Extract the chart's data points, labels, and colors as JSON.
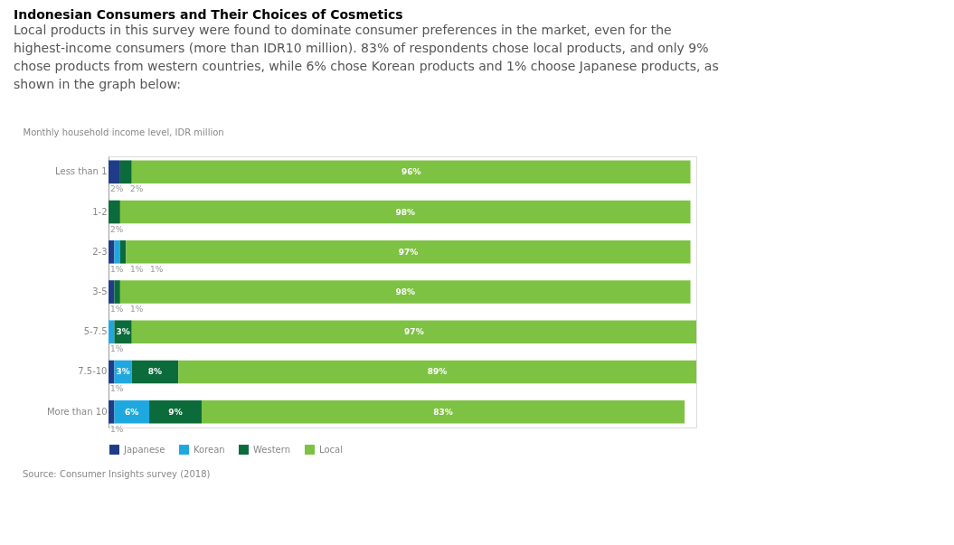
{
  "chart_data": {
    "type": "bar",
    "orientation": "horizontal",
    "stacked": true,
    "title": "Indonesian Consumers and Their Choices of Cosmetics",
    "subtitle": "Local products in this survey were found to dominate consumer preferences in the market, even for the highest-income consumers (more than IDR10 million). 83% of respondents chose local products, and only 9% chose products from western countries, while 6% chose Korean products and 1% choose Japanese products, as shown in the graph below:",
    "ylabel": "Monthly household income level, IDR million",
    "categories": [
      "Less than 1",
      "1-2",
      "2-3",
      "3-5",
      "5-7.5",
      "7.5-10",
      "More than 10"
    ],
    "series": [
      {
        "name": "Japanese",
        "color": "#1f3c88",
        "values": [
          2,
          null,
          1,
          1,
          null,
          1,
          1
        ],
        "value_labels": [
          "2%",
          null,
          "1%",
          "1%",
          null,
          "1%",
          "1%"
        ]
      },
      {
        "name": "Korean",
        "color": "#1fa8e0",
        "values": [
          null,
          null,
          1,
          null,
          1,
          3,
          6
        ],
        "value_labels": [
          null,
          null,
          "1%",
          null,
          "1%",
          "3%",
          "6%"
        ]
      },
      {
        "name": "Western",
        "color": "#0b6b3a",
        "values": [
          2,
          2,
          1,
          1,
          3,
          8,
          9
        ],
        "value_labels": [
          "2%",
          "2%",
          "1%",
          "1%",
          "3%",
          "8%",
          "9%"
        ]
      },
      {
        "name": "Local",
        "color": "#7dc242",
        "values": [
          96,
          98,
          97,
          98,
          97,
          89,
          83
        ],
        "value_labels": [
          "96%",
          "98%",
          "97%",
          "98%",
          "97%",
          "89%",
          "83%"
        ]
      }
    ],
    "legend": "bottom",
    "annotations": [
      "Source: Consumer Insights survey (2018)"
    ]
  }
}
